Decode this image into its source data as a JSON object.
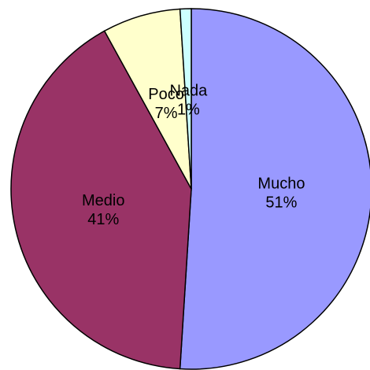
{
  "chart_data": {
    "type": "pie",
    "categories": [
      "Mucho",
      "Medio",
      "Poco",
      "Nada"
    ],
    "values": [
      51,
      41,
      7,
      1
    ],
    "value_labels": [
      "51%",
      "41%",
      "7%",
      "1%"
    ],
    "colors": [
      "#9999ff",
      "#993366",
      "#ffffcc",
      "#ccffff"
    ]
  }
}
